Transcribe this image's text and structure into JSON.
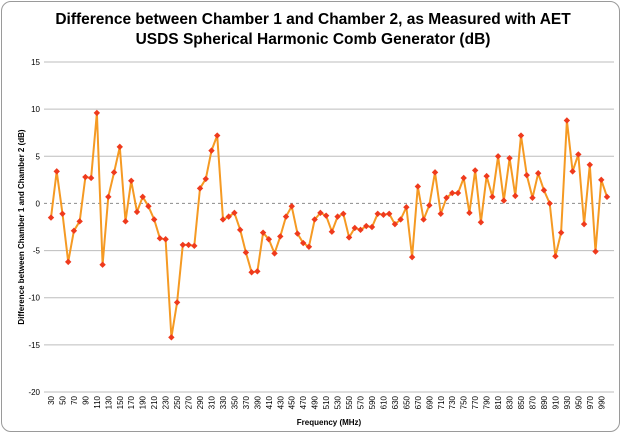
{
  "chart_data": {
    "type": "line",
    "title_line1": "Difference between Chamber 1 and Chamber 2, as Measured with AET",
    "title_line2": "USDS Spherical Harmonic Comb Generator (dB)",
    "xlabel": "Frequency (MHz)",
    "ylabel": "Difference between Chamber 1 and Chamber 2 (dB)",
    "ylim": [
      -20,
      15
    ],
    "yticks": [
      15,
      10,
      5,
      0,
      -5,
      -10,
      -15,
      -20
    ],
    "grid": "horizontal",
    "legend": "none",
    "line_color": "#f59a23",
    "marker_color": "#ef3a1d",
    "zero_line": "dashed",
    "x_start": 30,
    "x_step": 10,
    "x_tick_labels": [
      "30",
      "50",
      "70",
      "90",
      "110",
      "130",
      "150",
      "170",
      "190",
      "210",
      "230",
      "250",
      "270",
      "290",
      "310",
      "330",
      "350",
      "370",
      "390",
      "410",
      "430",
      "450",
      "470",
      "490",
      "510",
      "530",
      "550",
      "570",
      "590",
      "610",
      "630",
      "650",
      "670",
      "690",
      "710",
      "730",
      "750",
      "770",
      "790",
      "810",
      "830",
      "850",
      "870",
      "890",
      "910",
      "930",
      "950",
      "970",
      "990"
    ],
    "values": [
      -1.5,
      3.4,
      -1.1,
      -6.2,
      -2.9,
      -1.9,
      2.8,
      2.7,
      9.6,
      -6.5,
      0.7,
      3.3,
      6.0,
      -1.9,
      2.4,
      -0.9,
      0.7,
      -0.3,
      -1.7,
      -3.7,
      -3.8,
      -14.2,
      -10.5,
      -4.4,
      -4.4,
      -4.5,
      1.6,
      2.6,
      5.6,
      7.2,
      -1.7,
      -1.4,
      -1.0,
      -2.8,
      -5.2,
      -7.3,
      -7.2,
      -3.1,
      -3.8,
      -5.3,
      -3.5,
      -1.4,
      -0.3,
      -3.2,
      -4.2,
      -4.6,
      -1.7,
      -1.0,
      -1.3,
      -3.0,
      -1.4,
      -1.1,
      -3.6,
      -2.6,
      -2.8,
      -2.4,
      -2.5,
      -1.1,
      -1.2,
      -1.1,
      -2.2,
      -1.7,
      -0.4,
      -5.7,
      1.8,
      -1.7,
      -0.2,
      3.3,
      -1.1,
      0.6,
      1.1,
      1.1,
      2.7,
      -1.0,
      3.5,
      -2.0,
      2.9,
      0.7,
      5.0,
      0.3,
      4.8,
      0.8,
      7.2,
      3.0,
      0.6,
      3.2,
      1.4,
      0.0,
      -5.6,
      -3.1,
      8.8,
      3.4,
      5.2,
      -2.2,
      4.1,
      -5.1,
      2.5,
      0.7
    ]
  }
}
